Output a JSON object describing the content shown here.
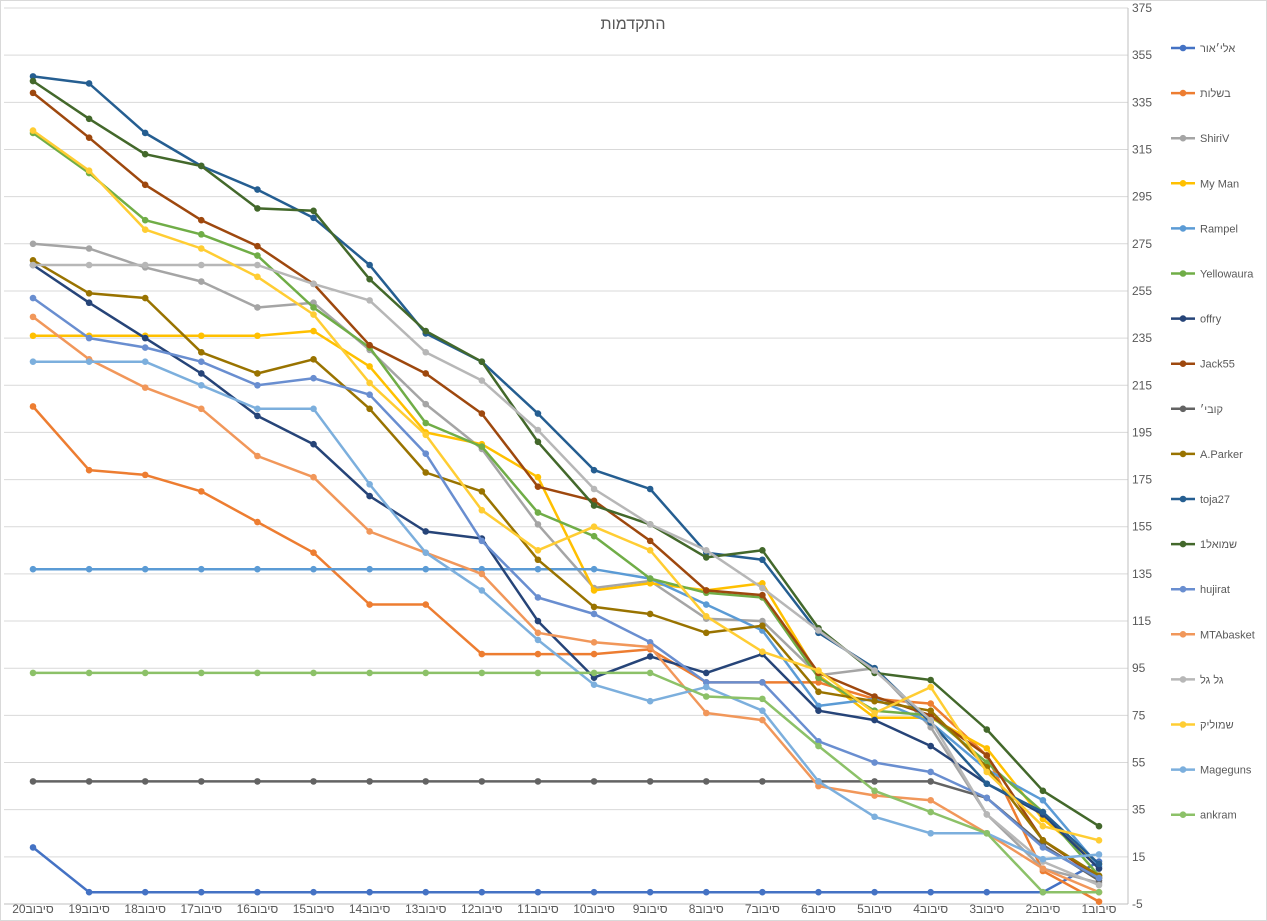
{
  "chart_data": {
    "type": "line",
    "title": "התקדמות",
    "xlabel": "",
    "ylabel": "",
    "ylim": [
      -5,
      375
    ],
    "y_ticks": [
      "-5",
      "15",
      "35",
      "55",
      "75",
      "95",
      "115",
      "135",
      "155",
      "175",
      "195",
      "215",
      "235",
      "255",
      "275",
      "295",
      "315",
      "335",
      "355",
      "375"
    ],
    "y_axis_position": "right",
    "grid": true,
    "legend_position": "right",
    "categories": [
      "סיבוב20",
      "סיבוב19",
      "סיבוב18",
      "סיבוב17",
      "סיבוב16",
      "סיבוב15",
      "סיבוב14",
      "סיבוב13",
      "סיבוב12",
      "סיבוב11",
      "סיבוב10",
      "סיבוב9",
      "סיבוב8",
      "סיבוב7",
      "סיבוב6",
      "סיבוב5",
      "סיבוב4",
      "סיבוב3",
      "סיבוב2",
      "סיבוב1"
    ],
    "series": [
      {
        "name": "אלי׳אור",
        "color": "#4472C4",
        "values": [
          19,
          0,
          0,
          0,
          0,
          0,
          0,
          0,
          0,
          0,
          0,
          0,
          0,
          0,
          0,
          0,
          0,
          0,
          0,
          13
        ]
      },
      {
        "name": "בשלות",
        "color": "#ED7D31",
        "values": [
          206,
          179,
          177,
          170,
          157,
          144,
          122,
          122,
          101,
          101,
          101,
          103,
          89,
          89,
          89,
          82,
          80,
          58,
          9,
          -4
        ]
      },
      {
        "name": "ShiriV",
        "color": "#A5A5A5",
        "values": [
          275,
          273,
          265,
          259,
          248,
          250,
          230,
          207,
          188,
          156,
          129,
          132,
          116,
          115,
          92,
          95,
          70,
          33,
          10,
          4
        ]
      },
      {
        "name": "My Man",
        "color": "#FFC000",
        "values": [
          236,
          236,
          236,
          236,
          236,
          238,
          223,
          195,
          190,
          176,
          128,
          131,
          128,
          131,
          92,
          74,
          74,
          61,
          31,
          12
        ]
      },
      {
        "name": "Rampel",
        "color": "#5B9BD5",
        "values": [
          137,
          137,
          137,
          137,
          137,
          137,
          137,
          137,
          137,
          137,
          137,
          133,
          122,
          111,
          79,
          82,
          72,
          52,
          39,
          11
        ]
      },
      {
        "name": "Yellowaura",
        "color": "#70AD47",
        "values": [
          322,
          305,
          285,
          279,
          270,
          248,
          231,
          199,
          189,
          161,
          151,
          133,
          127,
          125,
          91,
          77,
          75,
          55,
          34,
          7
        ]
      },
      {
        "name": "offry",
        "color": "#264478",
        "values": [
          266,
          250,
          235,
          220,
          202,
          190,
          168,
          153,
          150,
          115,
          91,
          100,
          93,
          101,
          77,
          73,
          62,
          46,
          33,
          10
        ]
      },
      {
        "name": "Jack55",
        "color": "#9E480E",
        "values": [
          339,
          320,
          300,
          285,
          274,
          258,
          232,
          220,
          203,
          172,
          166,
          149,
          128,
          126,
          93,
          83,
          75,
          58,
          22,
          6
        ]
      },
      {
        "name": "קובי׳",
        "color": "#636363",
        "values": [
          47,
          47,
          47,
          47,
          47,
          47,
          47,
          47,
          47,
          47,
          47,
          47,
          47,
          47,
          47,
          47,
          47,
          40,
          20,
          5
        ]
      },
      {
        "name": "A.Parker",
        "color": "#997300",
        "values": [
          268,
          254,
          252,
          229,
          220,
          226,
          205,
          178,
          170,
          141,
          121,
          118,
          110,
          113,
          85,
          81,
          77,
          53,
          22,
          7
        ]
      },
      {
        "name": "toja27",
        "color": "#255E91",
        "values": [
          346,
          343,
          322,
          308,
          298,
          286,
          266,
          237,
          225,
          203,
          179,
          171,
          144,
          141,
          110,
          95,
          72,
          46,
          34,
          12
        ]
      },
      {
        "name": "שמואל1",
        "color": "#43682B",
        "values": [
          344,
          328,
          313,
          308,
          290,
          289,
          260,
          238,
          225,
          191,
          164,
          156,
          142,
          145,
          112,
          93,
          90,
          69,
          43,
          28
        ]
      },
      {
        "name": "hujirat",
        "color": "#698ED0",
        "values": [
          252,
          235,
          231,
          225,
          215,
          218,
          211,
          186,
          149,
          125,
          118,
          106,
          89,
          89,
          64,
          55,
          51,
          40,
          19,
          6
        ]
      },
      {
        "name": "MTAbasket",
        "color": "#F1975A",
        "values": [
          244,
          226,
          214,
          205,
          185,
          176,
          153,
          144,
          135,
          110,
          106,
          104,
          76,
          73,
          45,
          41,
          39,
          25,
          10,
          0
        ]
      },
      {
        "name": "גל גל",
        "color": "#B7B7B7",
        "values": [
          266,
          266,
          266,
          266,
          266,
          258,
          251,
          229,
          217,
          196,
          171,
          156,
          145,
          129,
          111,
          94,
          73,
          33,
          13,
          3
        ]
      },
      {
        "name": "שמוליק",
        "color": "#FFCD33",
        "values": [
          323,
          306,
          281,
          273,
          261,
          245,
          216,
          194,
          162,
          145,
          155,
          145,
          117,
          102,
          94,
          76,
          87,
          51,
          28,
          22
        ]
      },
      {
        "name": "Mageguns",
        "color": "#7CAFDD",
        "values": [
          225,
          225,
          225,
          215,
          205,
          205,
          173,
          144,
          128,
          107,
          88,
          81,
          87,
          77,
          47,
          32,
          25,
          25,
          14,
          16
        ]
      },
      {
        "name": "ankram",
        "color": "#8CC168",
        "values": [
          93,
          93,
          93,
          93,
          93,
          93,
          93,
          93,
          93,
          93,
          93,
          93,
          83,
          82,
          62,
          43,
          34,
          25,
          0,
          0
        ]
      }
    ]
  }
}
